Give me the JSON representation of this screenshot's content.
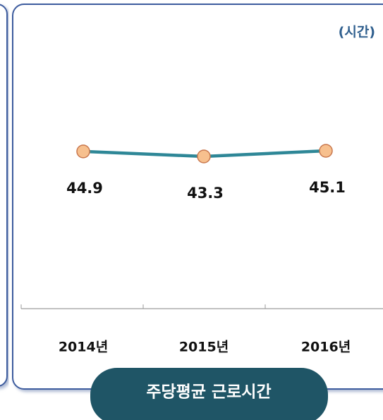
{
  "chart_data": {
    "type": "line",
    "title": "주당평균 근로시간",
    "unit_label": "(시간)",
    "categories": [
      "2014년",
      "2015년",
      "2016년"
    ],
    "values": [
      44.9,
      43.3,
      45.1
    ],
    "color": "#2e8797",
    "marker_color": "#f7c08e",
    "marker_edge_color": "#c9784e"
  }
}
